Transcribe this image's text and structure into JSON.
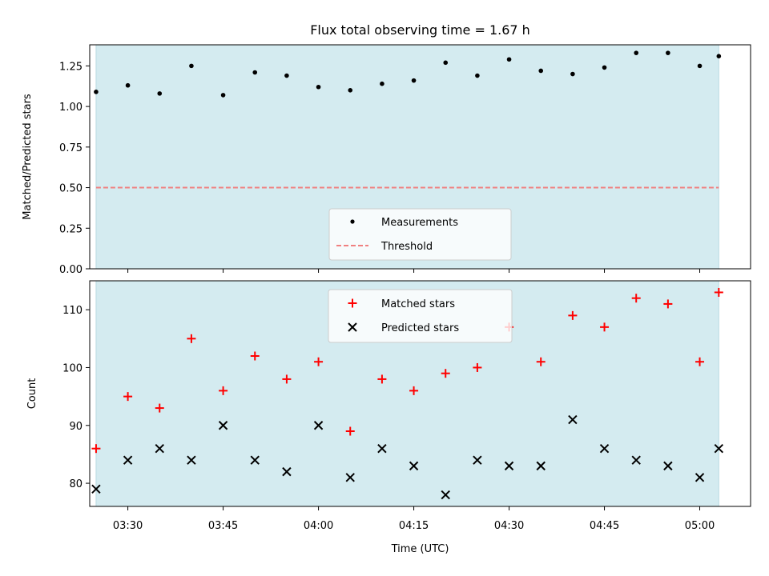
{
  "colors": {
    "shade": "#d4ebf0",
    "shade_edge": "#b9dbe3",
    "threshold": "#f08080",
    "matched": "#ff0000",
    "predicted": "#000000",
    "measurement": "#000000"
  },
  "chart_data": [
    {
      "type": "scatter",
      "title": "Flux total observing time = 1.67 h",
      "ylabel": "Matched/Predicted stars",
      "xlabel": "",
      "x_range": [
        "03:24:00",
        "05:08:00"
      ],
      "ylim": [
        0,
        1.38
      ],
      "yticks": [
        0.0,
        0.25,
        0.5,
        0.75,
        1.0,
        1.25
      ],
      "ytick_labels": [
        "0.00",
        "0.25",
        "0.50",
        "0.75",
        "1.00",
        "1.25"
      ],
      "shaded_span": [
        "03:25:00",
        "05:03:00"
      ],
      "grid": false,
      "legend_position": "lower center",
      "series": [
        {
          "name": "Measurements",
          "marker": "dot",
          "x": [
            "03:25",
            "03:30",
            "03:35",
            "03:40",
            "03:45",
            "03:50",
            "03:55",
            "04:00",
            "04:05",
            "04:10",
            "04:15",
            "04:20",
            "04:25",
            "04:30",
            "04:35",
            "04:40",
            "04:45",
            "04:50",
            "04:55",
            "05:00",
            "05:03"
          ],
          "values": [
            1.09,
            1.13,
            1.08,
            1.25,
            1.07,
            1.21,
            1.19,
            1.12,
            1.1,
            1.14,
            1.16,
            1.27,
            1.19,
            1.29,
            1.22,
            1.2,
            1.24,
            1.33,
            1.33,
            1.25,
            1.31
          ]
        },
        {
          "name": "Threshold",
          "style": "dashed-line",
          "x": [
            "03:25",
            "05:03"
          ],
          "values": [
            0.5,
            0.5
          ]
        }
      ]
    },
    {
      "type": "scatter",
      "title": "",
      "ylabel": "Count",
      "xlabel": "Time (UTC)",
      "x_range": [
        "03:24:00",
        "05:08:00"
      ],
      "xticks": [
        "03:30",
        "03:45",
        "04:00",
        "04:15",
        "04:30",
        "04:45",
        "05:00"
      ],
      "ylim": [
        76,
        115
      ],
      "yticks": [
        80,
        90,
        100,
        110
      ],
      "ytick_labels": [
        "80",
        "90",
        "100",
        "110"
      ],
      "shaded_span": [
        "03:25:00",
        "05:03:00"
      ],
      "grid": false,
      "legend_position": "upper center",
      "series": [
        {
          "name": "Matched stars",
          "marker": "plus",
          "x": [
            "03:25",
            "03:30",
            "03:35",
            "03:40",
            "03:45",
            "03:50",
            "03:55",
            "04:00",
            "04:05",
            "04:10",
            "04:15",
            "04:20",
            "04:25",
            "04:30",
            "04:35",
            "04:40",
            "04:45",
            "04:50",
            "04:55",
            "05:00",
            "05:03"
          ],
          "values": [
            86,
            95,
            93,
            105,
            96,
            102,
            98,
            101,
            89,
            98,
            96,
            99,
            100,
            107,
            101,
            109,
            107,
            112,
            111,
            101,
            113
          ]
        },
        {
          "name": "Predicted stars",
          "marker": "x",
          "x": [
            "03:25",
            "03:30",
            "03:35",
            "03:40",
            "03:45",
            "03:50",
            "03:55",
            "04:00",
            "04:05",
            "04:10",
            "04:15",
            "04:20",
            "04:25",
            "04:30",
            "04:35",
            "04:40",
            "04:45",
            "04:50",
            "04:55",
            "05:00",
            "05:03"
          ],
          "values": [
            79,
            84,
            86,
            84,
            90,
            84,
            82,
            90,
            81,
            86,
            83,
            78,
            84,
            83,
            83,
            91,
            86,
            84,
            83,
            81,
            86
          ]
        }
      ]
    }
  ]
}
